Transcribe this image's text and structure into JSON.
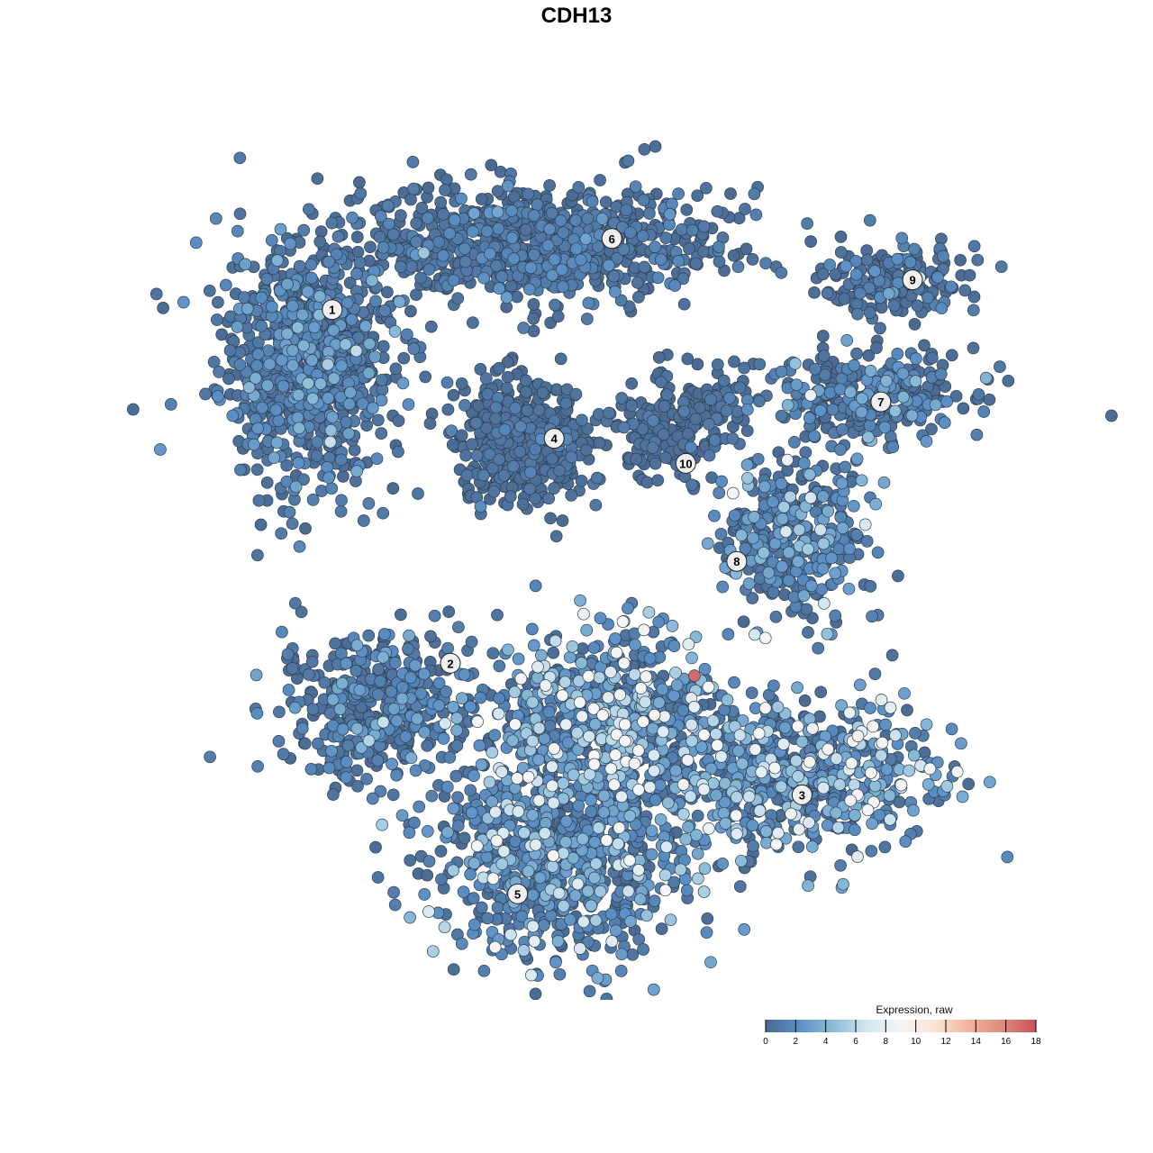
{
  "chart_data": {
    "type": "scatter",
    "title": "CDH13",
    "xlabel": "",
    "ylabel": "",
    "xlim": [
      -45,
      45
    ],
    "ylim": [
      -45,
      45
    ],
    "grid": false,
    "axes_visible": false,
    "color_scale": {
      "title": "Expression, raw",
      "min": 0,
      "max": 18,
      "ticks": [
        0,
        2,
        4,
        6,
        8,
        10,
        12,
        14,
        16,
        18
      ],
      "colors": [
        "#4a6a91",
        "#5b8fc4",
        "#8bbcd8",
        "#d3e6f0",
        "#f5f5f5",
        "#fbe3d6",
        "#f2b49c",
        "#e08a7c",
        "#c9505f"
      ],
      "legend_position": "bottom-right"
    },
    "clusters": [
      {
        "label": "1",
        "label_pos": [
          -27.3,
          25.9
        ],
        "center": [
          -30.0,
          20.6
        ],
        "spread": [
          5.6,
          7.5
        ],
        "n": 900,
        "mean_expr": 1.0
      },
      {
        "label": "6",
        "label_pos": [
          1.8,
          33.3
        ],
        "center": [
          -5.6,
          32.8
        ],
        "spread": [
          11.2,
          3.7
        ],
        "n": 900,
        "mean_expr": 0.6
      },
      {
        "label": "4",
        "label_pos": [
          -4.2,
          12.5
        ],
        "center": [
          -7.5,
          12.2
        ],
        "spread": [
          4.0,
          4.0
        ],
        "n": 500,
        "mean_expr": 0.3
      },
      {
        "label": "9",
        "label_pos": [
          33.1,
          29.0
        ],
        "center": [
          31.0,
          29.0
        ],
        "spread": [
          4.7,
          2.3
        ],
        "n": 180,
        "mean_expr": 0.7
      },
      {
        "label": "7",
        "label_pos": [
          29.8,
          16.3
        ],
        "center": [
          28.1,
          16.9
        ],
        "spread": [
          7.5,
          2.8
        ],
        "n": 320,
        "mean_expr": 1.0
      },
      {
        "label": "10",
        "label_pos": [
          9.5,
          9.9
        ],
        "center": [
          8.4,
          14.0
        ],
        "spread": [
          4.2,
          3.5
        ],
        "n": 200,
        "mean_expr": 0.3
      },
      {
        "label": "8",
        "label_pos": [
          14.8,
          -0.3
        ],
        "center": [
          20.6,
          1.9
        ],
        "spread": [
          4.7,
          5.6
        ],
        "n": 320,
        "mean_expr": 1.5
      },
      {
        "label": "2",
        "label_pos": [
          -15.0,
          -10.9
        ],
        "center": [
          -22.5,
          -15.0
        ],
        "spread": [
          6.6,
          4.7
        ],
        "n": 420,
        "mean_expr": 1.0
      },
      {
        "label": "3",
        "label_pos": [
          21.6,
          -24.6
        ],
        "center": [
          21.6,
          -22.5
        ],
        "spread": [
          8.4,
          4.7
        ],
        "n": 600,
        "mean_expr": 2.5
      },
      {
        "label": "5",
        "label_pos": [
          -8.0,
          -34.9
        ],
        "center": [
          -3.7,
          -31.0
        ],
        "spread": [
          8.4,
          7.0
        ],
        "n": 800,
        "mean_expr": 1.8
      },
      {
        "label": "",
        "label_pos": null,
        "center": [
          1.9,
          -16.9
        ],
        "spread": [
          7.5,
          5.6
        ],
        "n": 700,
        "mean_expr": 2.8
      }
    ],
    "highlight_points": [
      {
        "x": 10.4,
        "y": -12.2,
        "value": 17
      }
    ]
  }
}
